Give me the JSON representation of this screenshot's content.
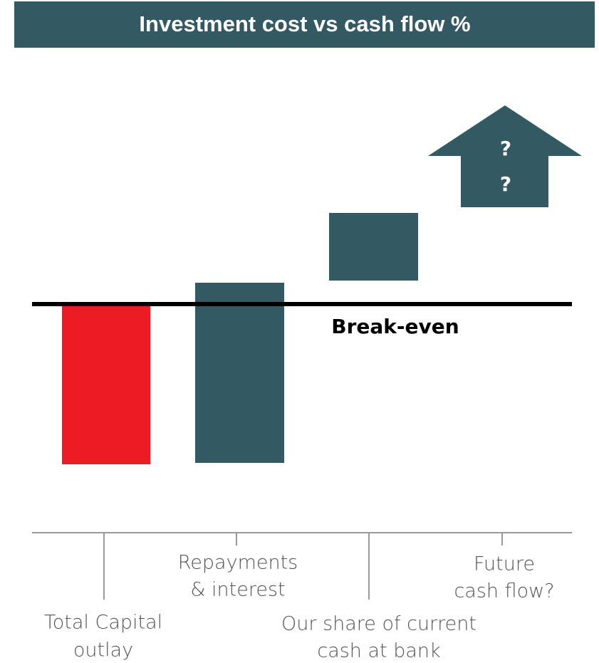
{
  "title": "Investment cost vs cash flow %",
  "annotation": "Break-even",
  "arrow_text": [
    "?",
    "?"
  ],
  "labels": [
    [
      "Total Capital",
      "outlay"
    ],
    [
      "Repayments",
      "& interest"
    ],
    [
      "Our share of current",
      "cash at bank"
    ],
    [
      "Future",
      "cash flow?"
    ]
  ]
}
